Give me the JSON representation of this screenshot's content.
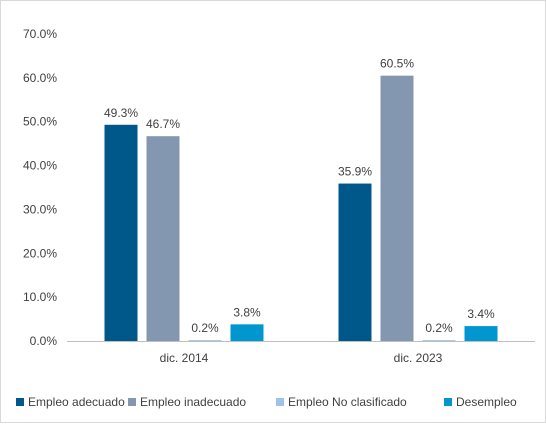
{
  "chart_data": {
    "type": "bar",
    "title": "",
    "xlabel": "",
    "ylabel": "",
    "categories": [
      "dic. 2014",
      "dic. 2023"
    ],
    "ylim": [
      0,
      70
    ],
    "yticks": [
      0,
      10,
      20,
      30,
      40,
      50,
      60,
      70
    ],
    "ytick_labels": [
      "0.0%",
      "10.0%",
      "20.0%",
      "30.0%",
      "40.0%",
      "50.0%",
      "60.0%",
      "70.0%"
    ],
    "grid": false,
    "legend_position": "bottom",
    "series": [
      {
        "name": "Empleo adecuado",
        "values": [
          49.3,
          35.9
        ],
        "labels": [
          "49.3%",
          "35.9%"
        ],
        "color": "#00578a"
      },
      {
        "name": "Empleo inadecuado",
        "values": [
          46.7,
          60.5
        ],
        "labels": [
          "46.7%",
          "60.5%"
        ],
        "color": "#8497b0"
      },
      {
        "name": "Empleo No clasificado",
        "values": [
          0.2,
          0.2
        ],
        "labels": [
          "0.2%",
          "0.2%"
        ],
        "color": "#9dc3e6"
      },
      {
        "name": "Desempleo",
        "values": [
          3.8,
          3.4
        ],
        "labels": [
          "3.8%",
          "3.4%"
        ],
        "color": "#0097d1"
      }
    ]
  }
}
